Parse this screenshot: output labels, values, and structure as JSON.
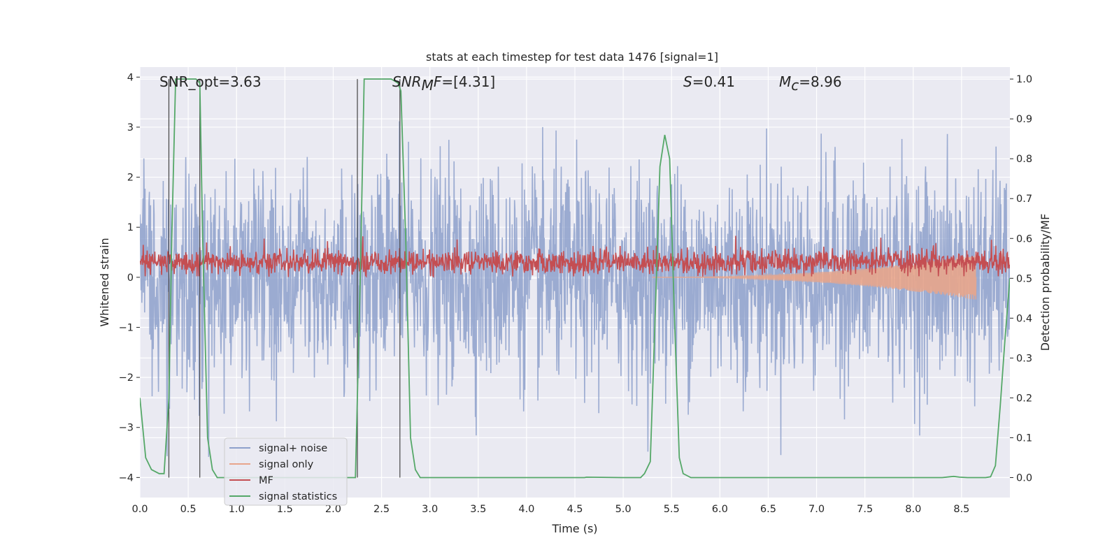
{
  "chart_data": {
    "type": "line",
    "title": "stats at each timestep for test data 1476 [signal=1]",
    "xlabel": "Time (s)",
    "ylabel": "Whitened strain",
    "y2label": "Detection probability/MF",
    "xlim": [
      0,
      9
    ],
    "ylim": [
      -4.4,
      4.2
    ],
    "y2lim": [
      -0.05,
      1.03
    ],
    "xticks": [
      "0.0",
      "0.5",
      "1.0",
      "1.5",
      "2.0",
      "2.5",
      "3.0",
      "3.5",
      "4.0",
      "4.5",
      "5.0",
      "5.5",
      "6.0",
      "6.5",
      "7.0",
      "7.5",
      "8.0",
      "8.5"
    ],
    "yticks": [
      "4",
      "3",
      "2",
      "1",
      "0",
      "−1",
      "−2",
      "−3",
      "−4"
    ],
    "y2ticks": [
      "1.0",
      "0.9",
      "0.8",
      "0.7",
      "0.6",
      "0.5",
      "0.4",
      "0.3",
      "0.2",
      "0.1",
      "0.0"
    ],
    "grid": true,
    "legend_position": "lower-left",
    "annotations": {
      "snr_opt": "SNR_opt=3.63",
      "snr_mf_italic": "SNR",
      "snr_mf_sub": "M",
      "snr_mf_rest_italic": "F",
      "snr_mf_value": "=[4.31]",
      "s_italic": "S",
      "s_value": "=0.41",
      "mc_italic": "M",
      "mc_sub": "c",
      "mc_value": "=8.96"
    },
    "series": [
      {
        "name": "signal+ noise",
        "color": "#8da0cb",
        "kind": "noise",
        "amplitude": 1.0,
        "peak": 3.9,
        "trough": -3.6
      },
      {
        "name": "signal only",
        "color": "#e8a58b",
        "kind": "chirp",
        "x_start": 5.3,
        "x_end": 8.65,
        "end_amplitude": 0.45
      },
      {
        "name": "MF",
        "color": "#c44e52",
        "kind": "mf",
        "center": 0.3,
        "spread": 0.2
      },
      {
        "name": "signal statistics",
        "color": "#55a868",
        "kind": "prob",
        "axis": "right",
        "x": [
          0,
          0.06,
          0.12,
          0.2,
          0.25,
          0.3,
          0.33,
          0.37,
          0.42,
          0.5,
          0.58,
          0.62,
          0.65,
          0.7,
          0.75,
          0.8,
          1,
          1.5,
          2,
          2.18,
          2.23,
          2.28,
          2.32,
          2.4,
          2.6,
          2.67,
          2.7,
          2.75,
          2.8,
          2.85,
          2.9,
          3.5,
          4,
          4.6,
          4.62,
          5,
          5.18,
          5.22,
          5.28,
          5.33,
          5.38,
          5.43,
          5.48,
          5.53,
          5.58,
          5.62,
          5.7,
          6,
          7,
          8,
          8.3,
          8.38,
          8.42,
          8.48,
          8.56,
          8.65,
          8.7,
          8.75,
          8.8,
          8.85,
          8.9,
          8.95,
          9
        ],
        "y": [
          0.2,
          0.05,
          0.02,
          0.01,
          0.01,
          0.2,
          0.6,
          1.0,
          1.0,
          1.0,
          1.0,
          0.99,
          0.6,
          0.1,
          0.02,
          0,
          0,
          0,
          0,
          0,
          0,
          0.5,
          1.0,
          1.0,
          1.0,
          0.99,
          0.97,
          0.6,
          0.1,
          0.02,
          0,
          0,
          0,
          0,
          0.001,
          0,
          0,
          0.01,
          0.04,
          0.4,
          0.78,
          0.86,
          0.8,
          0.4,
          0.05,
          0.01,
          0,
          0,
          0,
          0,
          0,
          0.002,
          0.003,
          0.001,
          0,
          0,
          0,
          0,
          0.002,
          0.03,
          0.18,
          0.35,
          0.5
        ]
      }
    ],
    "vertical_lines": [
      0.3,
      0.62,
      2.25,
      2.69
    ]
  }
}
